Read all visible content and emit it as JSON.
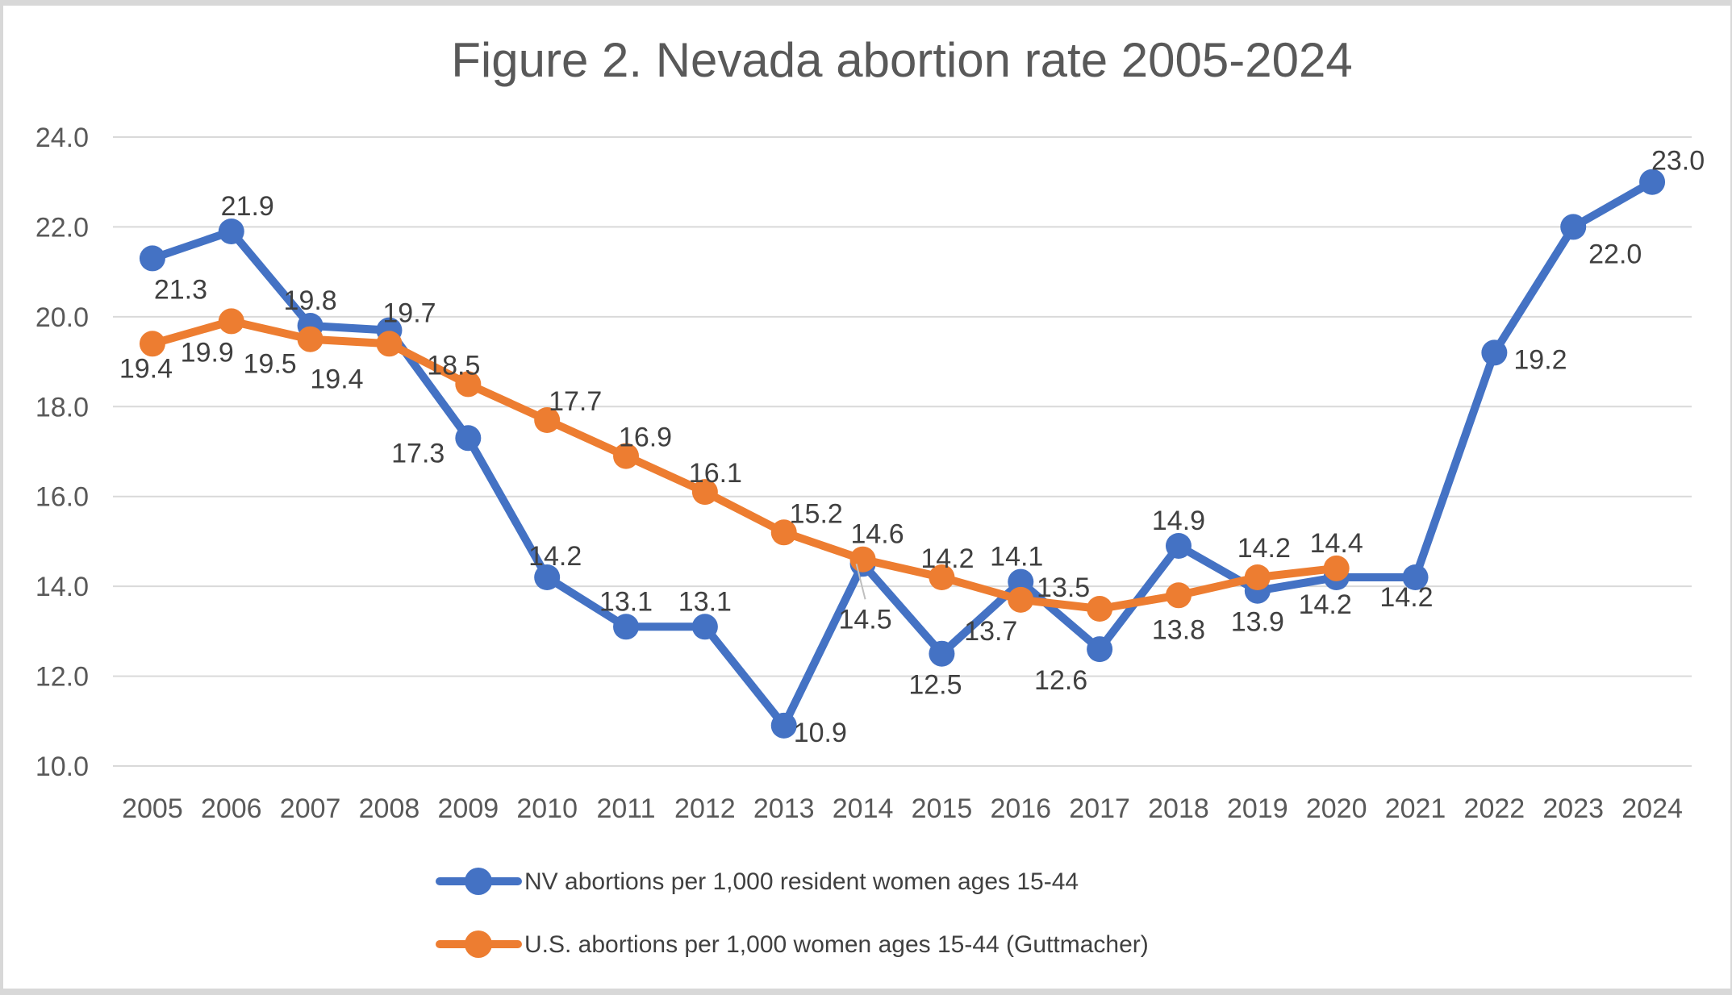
{
  "chart_data": {
    "type": "line",
    "title": "Figure 2. Nevada abortion rate 2005-2024",
    "categories": [
      "2005",
      "2006",
      "2007",
      "2008",
      "2009",
      "2010",
      "2011",
      "2012",
      "2013",
      "2014",
      "2015",
      "2016",
      "2017",
      "2018",
      "2019",
      "2020",
      "2021",
      "2022",
      "2023",
      "2024"
    ],
    "ylim": [
      10.0,
      24.0
    ],
    "ystep": 2.0,
    "ytick_format": "one_decimal",
    "grid": true,
    "legend_position": "bottom",
    "colors": {
      "nv_series": "#4472C4",
      "us_series": "#ED7D31",
      "gridline": "#D9D9D9",
      "axis_text": "#595959",
      "data_label_text": "#404040",
      "title_text": "#595959",
      "leader_line": "#BFBFBF",
      "page_border": "#d8d8d8"
    },
    "series": [
      {
        "name": "NV abortions per 1,000 resident women ages 15-44",
        "color": "#4472C4",
        "points": [
          {
            "x": "2005",
            "v": 21.3,
            "pos": "below",
            "dx": 35,
            "dy": 0
          },
          {
            "x": "2006",
            "v": 21.9,
            "pos": "above",
            "dx": 20,
            "dy": 0
          },
          {
            "x": "2007",
            "v": 19.8,
            "pos": "above",
            "dx": 0,
            "dy": 0
          },
          {
            "x": "2008",
            "v": 19.7,
            "pos": "above",
            "dx": 25,
            "dy": 10
          },
          {
            "x": "2009",
            "v": 17.3,
            "pos": "left",
            "dx": -5,
            "dy": 18
          },
          {
            "x": "2010",
            "v": 14.2,
            "pos": "above",
            "dx": 10,
            "dy": 5
          },
          {
            "x": "2011",
            "v": 13.1,
            "pos": "above",
            "dx": 0,
            "dy": 0
          },
          {
            "x": "2012",
            "v": 13.1,
            "pos": "above",
            "dx": 0,
            "dy": 0
          },
          {
            "x": "2013",
            "v": 10.9,
            "pos": "right",
            "dx": -12,
            "dy": 8
          },
          {
            "x": "2014",
            "v": 14.5,
            "pos": "below",
            "dx": 3,
            "dy": 30,
            "leader": true
          },
          {
            "x": "2015",
            "v": 12.5,
            "pos": "below",
            "dx": -8,
            "dy": 0
          },
          {
            "x": "2016",
            "v": 14.1,
            "pos": "above",
            "dx": -5,
            "dy": 0
          },
          {
            "x": "2017",
            "v": 12.6,
            "pos": "below",
            "dx": -48,
            "dy": 0
          },
          {
            "x": "2018",
            "v": 14.9,
            "pos": "above",
            "dx": 0,
            "dy": 0
          },
          {
            "x": "2019",
            "v": 13.9,
            "pos": "below",
            "dx": 0,
            "dy": 0
          },
          {
            "x": "2020",
            "v": 14.2,
            "pos": "below",
            "dx": -14,
            "dy": -5
          },
          {
            "x": "2021",
            "v": 14.2,
            "pos": "below",
            "dx": -11,
            "dy": -14
          },
          {
            "x": "2022",
            "v": 19.2,
            "pos": "right",
            "dx": 0,
            "dy": 8
          },
          {
            "x": "2023",
            "v": 22.0,
            "pos": "below",
            "dx": 52,
            "dy": -5
          },
          {
            "x": "2024",
            "v": 23.0,
            "pos": "above",
            "dx": 32,
            "dy": 5
          }
        ]
      },
      {
        "name": "U.S. abortions per 1,000 women ages 15-44 (Guttmacher)",
        "color": "#ED7D31",
        "points": [
          {
            "x": "2005",
            "v": 19.4,
            "pos": "below",
            "dx": -8,
            "dy": -8
          },
          {
            "x": "2006",
            "v": 19.9,
            "pos": "below",
            "dx": -30,
            "dy": 0
          },
          {
            "x": "2007",
            "v": 19.5,
            "pos": "below",
            "dx": -50,
            "dy": -8
          },
          {
            "x": "2008",
            "v": 19.4,
            "pos": "below",
            "dx": -65,
            "dy": 5
          },
          {
            "x": "2009",
            "v": 18.5,
            "pos": "above",
            "dx": -18,
            "dy": 8
          },
          {
            "x": "2010",
            "v": 17.7,
            "pos": "above",
            "dx": 35,
            "dy": 8
          },
          {
            "x": "2011",
            "v": 16.9,
            "pos": "above",
            "dx": 24,
            "dy": 8
          },
          {
            "x": "2012",
            "v": 16.1,
            "pos": "above",
            "dx": 13,
            "dy": 8
          },
          {
            "x": "2013",
            "v": 15.2,
            "pos": "above",
            "dx": 40,
            "dy": 8
          },
          {
            "x": "2014",
            "v": 14.6,
            "pos": "above",
            "dx": 18,
            "dy": 0
          },
          {
            "x": "2015",
            "v": 14.2,
            "pos": "above",
            "dx": 7,
            "dy": 8
          },
          {
            "x": "2016",
            "v": 13.7,
            "pos": "below",
            "dx": -37,
            "dy": 0
          },
          {
            "x": "2017",
            "v": 13.5,
            "pos": "above",
            "dx": -45,
            "dy": 5
          },
          {
            "x": "2018",
            "v": 13.8,
            "pos": "below",
            "dx": 0,
            "dy": 4
          },
          {
            "x": "2019",
            "v": 14.2,
            "pos": "above",
            "dx": 8,
            "dy": -5
          },
          {
            "x": "2020",
            "v": 14.4,
            "pos": "above",
            "dx": 0,
            "dy": 0
          }
        ]
      }
    ]
  }
}
